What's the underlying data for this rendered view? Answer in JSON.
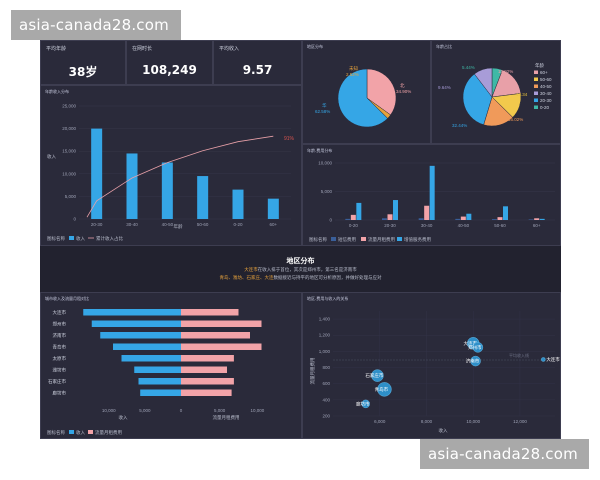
{
  "watermark": "asia-canada28.com",
  "kpis": [
    {
      "label": "平均年龄",
      "value": "38岁"
    },
    {
      "label": "在网时长",
      "value": "108,249"
    },
    {
      "label": "平均收入",
      "value": "9.57"
    }
  ],
  "colors": {
    "blue": "#35a6e6",
    "pink": "#f2a3a8",
    "curve": "#f2b0b8",
    "dark": "#22222f"
  },
  "income_age_chart": {
    "title": "年龄收入分布",
    "y_ticks": [
      "25,000",
      "20,000",
      "15,000",
      "10,000",
      "5,000",
      "0"
    ],
    "y_label": "收入",
    "x_label": "年龄",
    "legend_prefix": "图标名称",
    "legend_bar": "收入",
    "legend_line": "累计收入占比",
    "end_label": "91%"
  },
  "region_pie": {
    "title": "地区分布",
    "labels": [
      "未知",
      "北",
      "南",
      "华"
    ],
    "values_text": [
      "2.52%",
      "34.90%",
      "62.58%"
    ]
  },
  "age_pie": {
    "title": "年龄占比",
    "legend_title": "年龄",
    "legend": [
      "60+",
      "50-60",
      "40-50",
      "30-40",
      "20-30",
      "0-20"
    ],
    "labels": [
      "5.44%",
      "15.92%",
      "13.34",
      "16.02%",
      "32.44%",
      "9.64%"
    ]
  },
  "usage_chart": {
    "title": "年龄-费用分布",
    "y_ticks": [
      "10,000",
      "5,000",
      "0"
    ],
    "legend_prefix": "图标名称",
    "legend": [
      "短信费用",
      "流量月租费用",
      "增值服务费用"
    ]
  },
  "region_section": {
    "title": "地区分布",
    "line1": "大连市在收入排于首位，其次是郑州市，第三名是济南市",
    "line1_city": "大连市",
    "line2": "青岛、潍坊、石家庄、大连数据接近与持平的地区可分析原因，并做好处理与应对",
    "line2_cities": "青岛、潍坊、石家庄、大连"
  },
  "city_chart": {
    "title": "城市收入及流量月租对比",
    "cities": [
      "大连市",
      "郑州市",
      "济南市",
      "青岛市",
      "太原市",
      "潍坊市",
      "石家庄市",
      "廊坊市"
    ],
    "x_ticks": [
      "10,000",
      "5,000",
      "0",
      "5,000",
      "10,000"
    ],
    "x_label_left": "收入",
    "x_label_right": "流量月租费用",
    "legend_prefix": "图标名称",
    "legend": [
      "收入",
      "流量月租费用"
    ]
  },
  "bubble_chart": {
    "title": "地区-费用与收入的关系",
    "y_ticks": [
      "1,400",
      "1,200",
      "1,000",
      "800",
      "600",
      "400",
      "200"
    ],
    "x_ticks": [
      "6,000",
      "8,000",
      "10,000",
      "12,000"
    ],
    "y_label": "流量月租费用",
    "x_label": "收入",
    "points": [
      "大连市",
      "郑州市",
      "济南市",
      "石家庄市",
      "青岛市",
      "廊坊市",
      "大连市"
    ],
    "ref_line": "平均收入线"
  },
  "chart_data": [
    {
      "type": "bar",
      "title": "年龄收入分布",
      "categories": [
        "20-30",
        "30-40",
        "40-50",
        "50-60",
        "0-20",
        "60+"
      ],
      "values": [
        20000,
        14500,
        12500,
        9500,
        6500,
        4500
      ],
      "line_series": {
        "name": "累计收入占比",
        "values": [
          0.2,
          0.45,
          0.62,
          0.75,
          0.85,
          0.91
        ]
      },
      "ylabel": "收入",
      "xlabel": "年龄",
      "ylim": [
        0,
        25000
      ]
    },
    {
      "type": "pie",
      "title": "地区分布",
      "categories": [
        "南",
        "北",
        "未知"
      ],
      "values": [
        62.58,
        34.9,
        2.52
      ]
    },
    {
      "type": "pie",
      "title": "年龄占比",
      "categories": [
        "60+",
        "50-60",
        "40-50",
        "30-40",
        "20-30",
        "0-20"
      ],
      "values": [
        5.44,
        15.92,
        13.34,
        16.02,
        32.44,
        9.64
      ]
    },
    {
      "type": "bar",
      "title": "年龄-费用分布",
      "categories": [
        "0-20",
        "20-30",
        "30-40",
        "40-50",
        "50-60",
        "60+"
      ],
      "series": [
        {
          "name": "短信费用",
          "values": [
            200,
            300,
            300,
            200,
            150,
            100
          ]
        },
        {
          "name": "流量月租费用",
          "values": [
            900,
            1000,
            2500,
            600,
            500,
            300
          ]
        },
        {
          "name": "增值服务费用",
          "values": [
            3000,
            3500,
            9500,
            1100,
            2400,
            200
          ]
        }
      ],
      "ylim": [
        0,
        10000
      ]
    },
    {
      "type": "bar",
      "title": "城市收入及流量月租对比",
      "categories": [
        "大连市",
        "郑州市",
        "济南市",
        "青岛市",
        "太原市",
        "潍坊市",
        "石家庄市",
        "廊坊市"
      ],
      "series": [
        {
          "name": "收入",
          "values": [
            11500,
            10500,
            9500,
            8000,
            7000,
            5500,
            5000,
            4800
          ]
        },
        {
          "name": "流量月租费用",
          "values": [
            750,
            1050,
            900,
            1050,
            690,
            600,
            690,
            660
          ]
        }
      ]
    },
    {
      "type": "scatter",
      "title": "地区-费用与收入的关系",
      "points": [
        {
          "name": "大连市",
          "x": 10000,
          "y": 1100,
          "r": 6
        },
        {
          "name": "郑州市",
          "x": 10200,
          "y": 1050,
          "r": 5
        },
        {
          "name": "济南市",
          "x": 10100,
          "y": 880,
          "r": 5
        },
        {
          "name": "石家庄市",
          "x": 5900,
          "y": 700,
          "r": 6
        },
        {
          "name": "青岛市",
          "x": 6200,
          "y": 530,
          "r": 7
        },
        {
          "name": "廊坊市",
          "x": 5400,
          "y": 350,
          "r": 4
        },
        {
          "name": "大连市",
          "x": 13000,
          "y": 900,
          "r": 2
        }
      ],
      "xlabel": "收入",
      "ylabel": "流量月租费用",
      "xlim": [
        4000,
        13500
      ],
      "ylim": [
        200,
        1500
      ]
    }
  ]
}
